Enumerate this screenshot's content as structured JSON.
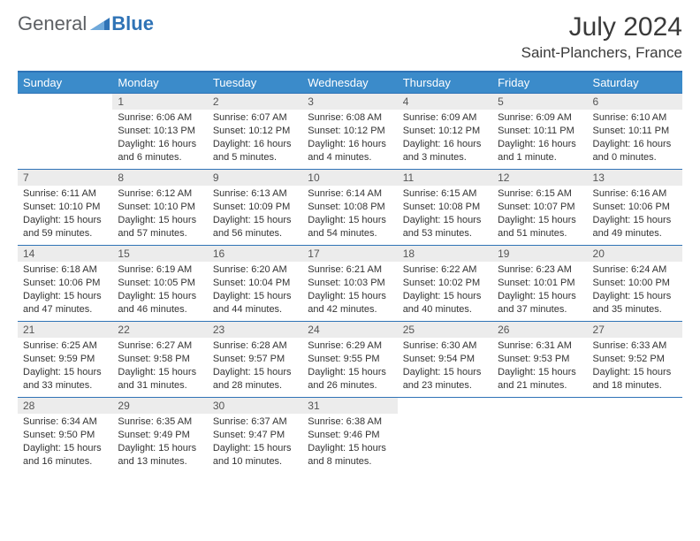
{
  "logo": {
    "text1": "General",
    "text2": "Blue"
  },
  "title": "July 2024",
  "location": "Saint-Planchers, France",
  "columns": [
    "Sunday",
    "Monday",
    "Tuesday",
    "Wednesday",
    "Thursday",
    "Friday",
    "Saturday"
  ],
  "colors": {
    "header_bg": "#3b8bca",
    "header_border": "#2f73b6",
    "daynum_bg": "#ececec",
    "text": "#333333"
  },
  "weeks": [
    [
      null,
      {
        "n": "1",
        "sr": "6:06 AM",
        "ss": "10:13 PM",
        "dl": "16 hours and 6 minutes."
      },
      {
        "n": "2",
        "sr": "6:07 AM",
        "ss": "10:12 PM",
        "dl": "16 hours and 5 minutes."
      },
      {
        "n": "3",
        "sr": "6:08 AM",
        "ss": "10:12 PM",
        "dl": "16 hours and 4 minutes."
      },
      {
        "n": "4",
        "sr": "6:09 AM",
        "ss": "10:12 PM",
        "dl": "16 hours and 3 minutes."
      },
      {
        "n": "5",
        "sr": "6:09 AM",
        "ss": "10:11 PM",
        "dl": "16 hours and 1 minute."
      },
      {
        "n": "6",
        "sr": "6:10 AM",
        "ss": "10:11 PM",
        "dl": "16 hours and 0 minutes."
      }
    ],
    [
      {
        "n": "7",
        "sr": "6:11 AM",
        "ss": "10:10 PM",
        "dl": "15 hours and 59 minutes."
      },
      {
        "n": "8",
        "sr": "6:12 AM",
        "ss": "10:10 PM",
        "dl": "15 hours and 57 minutes."
      },
      {
        "n": "9",
        "sr": "6:13 AM",
        "ss": "10:09 PM",
        "dl": "15 hours and 56 minutes."
      },
      {
        "n": "10",
        "sr": "6:14 AM",
        "ss": "10:08 PM",
        "dl": "15 hours and 54 minutes."
      },
      {
        "n": "11",
        "sr": "6:15 AM",
        "ss": "10:08 PM",
        "dl": "15 hours and 53 minutes."
      },
      {
        "n": "12",
        "sr": "6:15 AM",
        "ss": "10:07 PM",
        "dl": "15 hours and 51 minutes."
      },
      {
        "n": "13",
        "sr": "6:16 AM",
        "ss": "10:06 PM",
        "dl": "15 hours and 49 minutes."
      }
    ],
    [
      {
        "n": "14",
        "sr": "6:18 AM",
        "ss": "10:06 PM",
        "dl": "15 hours and 47 minutes."
      },
      {
        "n": "15",
        "sr": "6:19 AM",
        "ss": "10:05 PM",
        "dl": "15 hours and 46 minutes."
      },
      {
        "n": "16",
        "sr": "6:20 AM",
        "ss": "10:04 PM",
        "dl": "15 hours and 44 minutes."
      },
      {
        "n": "17",
        "sr": "6:21 AM",
        "ss": "10:03 PM",
        "dl": "15 hours and 42 minutes."
      },
      {
        "n": "18",
        "sr": "6:22 AM",
        "ss": "10:02 PM",
        "dl": "15 hours and 40 minutes."
      },
      {
        "n": "19",
        "sr": "6:23 AM",
        "ss": "10:01 PM",
        "dl": "15 hours and 37 minutes."
      },
      {
        "n": "20",
        "sr": "6:24 AM",
        "ss": "10:00 PM",
        "dl": "15 hours and 35 minutes."
      }
    ],
    [
      {
        "n": "21",
        "sr": "6:25 AM",
        "ss": "9:59 PM",
        "dl": "15 hours and 33 minutes."
      },
      {
        "n": "22",
        "sr": "6:27 AM",
        "ss": "9:58 PM",
        "dl": "15 hours and 31 minutes."
      },
      {
        "n": "23",
        "sr": "6:28 AM",
        "ss": "9:57 PM",
        "dl": "15 hours and 28 minutes."
      },
      {
        "n": "24",
        "sr": "6:29 AM",
        "ss": "9:55 PM",
        "dl": "15 hours and 26 minutes."
      },
      {
        "n": "25",
        "sr": "6:30 AM",
        "ss": "9:54 PM",
        "dl": "15 hours and 23 minutes."
      },
      {
        "n": "26",
        "sr": "6:31 AM",
        "ss": "9:53 PM",
        "dl": "15 hours and 21 minutes."
      },
      {
        "n": "27",
        "sr": "6:33 AM",
        "ss": "9:52 PM",
        "dl": "15 hours and 18 minutes."
      }
    ],
    [
      {
        "n": "28",
        "sr": "6:34 AM",
        "ss": "9:50 PM",
        "dl": "15 hours and 16 minutes."
      },
      {
        "n": "29",
        "sr": "6:35 AM",
        "ss": "9:49 PM",
        "dl": "15 hours and 13 minutes."
      },
      {
        "n": "30",
        "sr": "6:37 AM",
        "ss": "9:47 PM",
        "dl": "15 hours and 10 minutes."
      },
      {
        "n": "31",
        "sr": "6:38 AM",
        "ss": "9:46 PM",
        "dl": "15 hours and 8 minutes."
      },
      null,
      null,
      null
    ]
  ],
  "labels": {
    "sunrise": "Sunrise:",
    "sunset": "Sunset:",
    "daylight": "Daylight:"
  }
}
